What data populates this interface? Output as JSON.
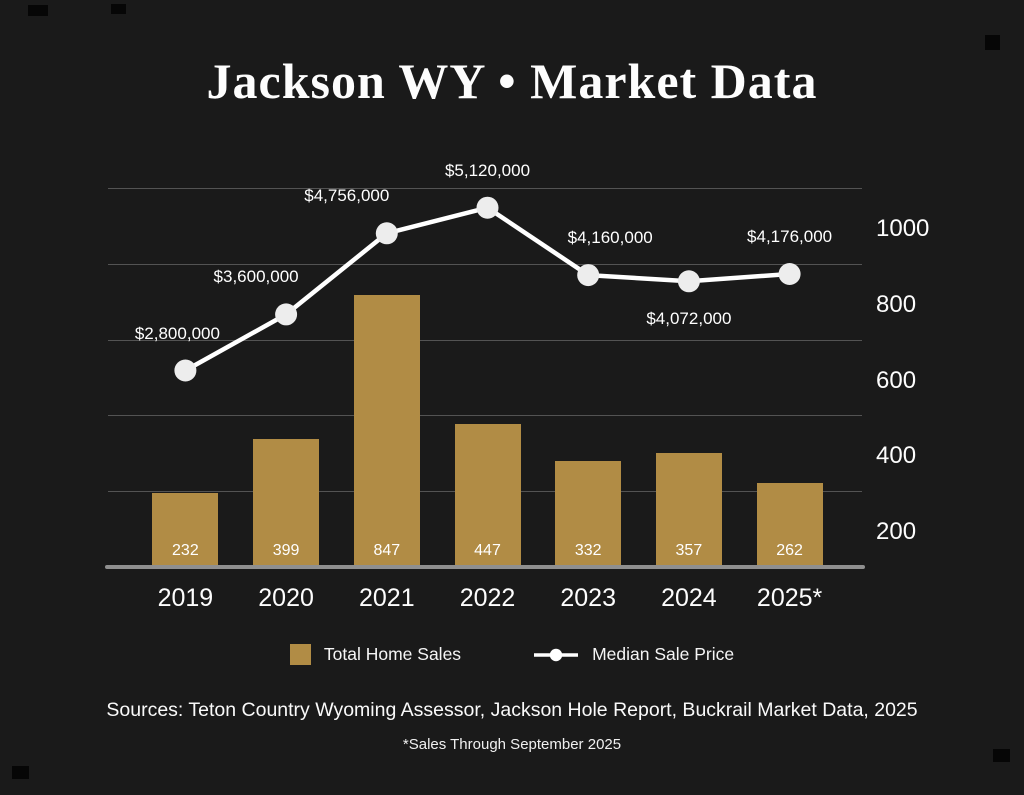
{
  "title": "Jackson WY • Market Data",
  "legend": {
    "bars_label": "Total Home Sales",
    "line_label": "Median Sale Price"
  },
  "footer": {
    "sources": "Sources: Teton Country Wyoming Assessor, Jackson Hole Report, Buckrail Market Data, 2025",
    "footnote": "*Sales Through September 2025"
  },
  "colors": {
    "background": "#1a1a1a",
    "bar": "#b18c45",
    "line": "#ffffff",
    "dot": "#ededed",
    "grid": "rgba(255,255,255,0.25)",
    "axis": "#8f8f8f",
    "text": "#ffffff"
  },
  "chart_data": {
    "type": "bar",
    "subtype": "bar+line combo",
    "title": "Jackson WY • Market Data",
    "categories": [
      "2019",
      "2020",
      "2021",
      "2022",
      "2023",
      "2024",
      "2025*"
    ],
    "series": [
      {
        "name": "Total Home Sales",
        "type": "bar",
        "values": [
          232,
          399,
          847,
          447,
          332,
          357,
          262
        ]
      },
      {
        "name": "Median Sale Price",
        "type": "line",
        "values": [
          2800000,
          3600000,
          4756000,
          5120000,
          4160000,
          4072000,
          4176000
        ],
        "labels": [
          "$2,800,000",
          "$3,600,000",
          "$4,756,000",
          "$5,120,000",
          "$4,160,000",
          "$4,072,000",
          "$4,176,000"
        ]
      }
    ],
    "right_axis": {
      "ticks": [
        200,
        400,
        600,
        800,
        1000
      ],
      "range": [
        0,
        1100
      ]
    },
    "price_axis_range": [
      0,
      5800000
    ],
    "grid": true,
    "legend_position": "bottom"
  }
}
